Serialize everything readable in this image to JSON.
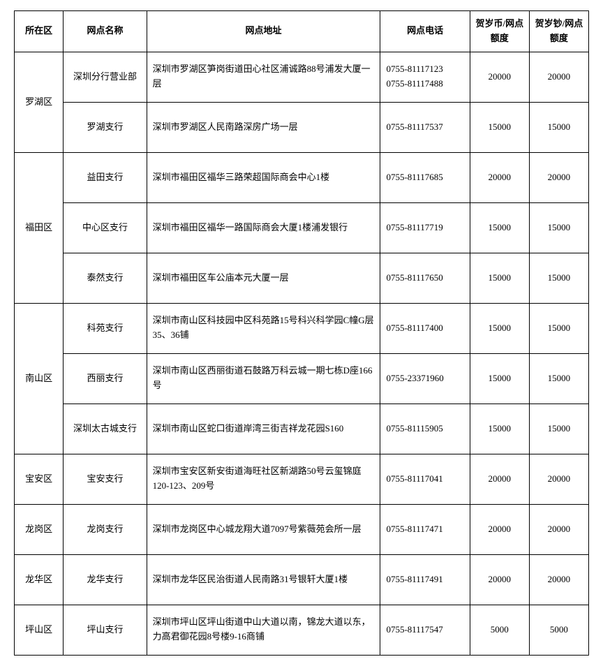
{
  "headers": {
    "district": "所在区",
    "branch": "网点名称",
    "address": "网点地址",
    "phone": "网点电话",
    "quota1": "贺岁币/网点额度",
    "quota2": "贺岁钞/网点额度"
  },
  "rows": [
    {
      "district": "罗湖区",
      "rowspan": 2,
      "branch": "深圳分行营业部",
      "address": "深圳市罗湖区笋岗街道田心社区浦诚路88号浦发大厦一层",
      "phone": "0755-81117123\n0755-81117488",
      "quota1": "20000",
      "quota2": "20000"
    },
    {
      "district": "",
      "rowspan": 0,
      "branch": "罗湖支行",
      "address": "深圳市罗湖区人民南路深房广场一层",
      "phone": "0755-81117537",
      "quota1": "15000",
      "quota2": "15000"
    },
    {
      "district": "福田区",
      "rowspan": 3,
      "branch": "益田支行",
      "address": "深圳市福田区福华三路荣超国际商会中心1楼",
      "phone": "0755-81117685",
      "quota1": "20000",
      "quota2": "20000"
    },
    {
      "district": "",
      "rowspan": 0,
      "branch": "中心区支行",
      "address": "深圳市福田区福华一路国际商会大厦1楼浦发银行",
      "phone": "0755-81117719",
      "quota1": "15000",
      "quota2": "15000"
    },
    {
      "district": "",
      "rowspan": 0,
      "branch": "泰然支行",
      "address": "深圳市福田区车公庙本元大厦一层",
      "phone": "0755-81117650",
      "quota1": "15000",
      "quota2": "15000"
    },
    {
      "district": "南山区",
      "rowspan": 3,
      "branch": "科苑支行",
      "address": "深圳市南山区科技园中区科苑路15号科兴科学园C幢G层35、36铺",
      "phone": "0755-81117400",
      "quota1": "15000",
      "quota2": "15000"
    },
    {
      "district": "",
      "rowspan": 0,
      "branch": "西丽支行",
      "address": "深圳市南山区西丽街道石鼓路万科云城一期七栋D座166号",
      "phone": "0755-23371960",
      "quota1": "15000",
      "quota2": "15000"
    },
    {
      "district": "",
      "rowspan": 0,
      "branch": "深圳太古城支行",
      "address": "深圳市南山区蛇口街道岸湾三街吉祥龙花园S160",
      "phone": "0755-81115905",
      "quota1": "15000",
      "quota2": "15000"
    },
    {
      "district": "宝安区",
      "rowspan": 1,
      "branch": "宝安支行",
      "address": "深圳市宝安区新安街道海旺社区新湖路50号云玺锦庭120-123、209号",
      "phone": "0755-81117041",
      "quota1": "20000",
      "quota2": "20000"
    },
    {
      "district": "龙岗区",
      "rowspan": 1,
      "branch": "龙岗支行",
      "address": "深圳市龙岗区中心城龙翔大道7097号紫薇苑会所一层",
      "phone": "0755-81117471",
      "quota1": "20000",
      "quota2": "20000"
    },
    {
      "district": "龙华区",
      "rowspan": 1,
      "branch": "龙华支行",
      "address": "深圳市龙华区民治街道人民南路31号银轩大厦1楼",
      "phone": "0755-81117491",
      "quota1": "20000",
      "quota2": "20000"
    },
    {
      "district": "坪山区",
      "rowspan": 1,
      "branch": "坪山支行",
      "address": "深圳市坪山区坪山街道中山大道以南，锦龙大道以东，力高君御花园8号楼9-16商铺",
      "phone": "0755-81117547",
      "quota1": "5000",
      "quota2": "5000"
    }
  ],
  "style": {
    "border_color": "#000000",
    "background_color": "#ffffff",
    "text_color": "#000000",
    "font_size_pt": 13,
    "header_font_weight": "bold"
  }
}
